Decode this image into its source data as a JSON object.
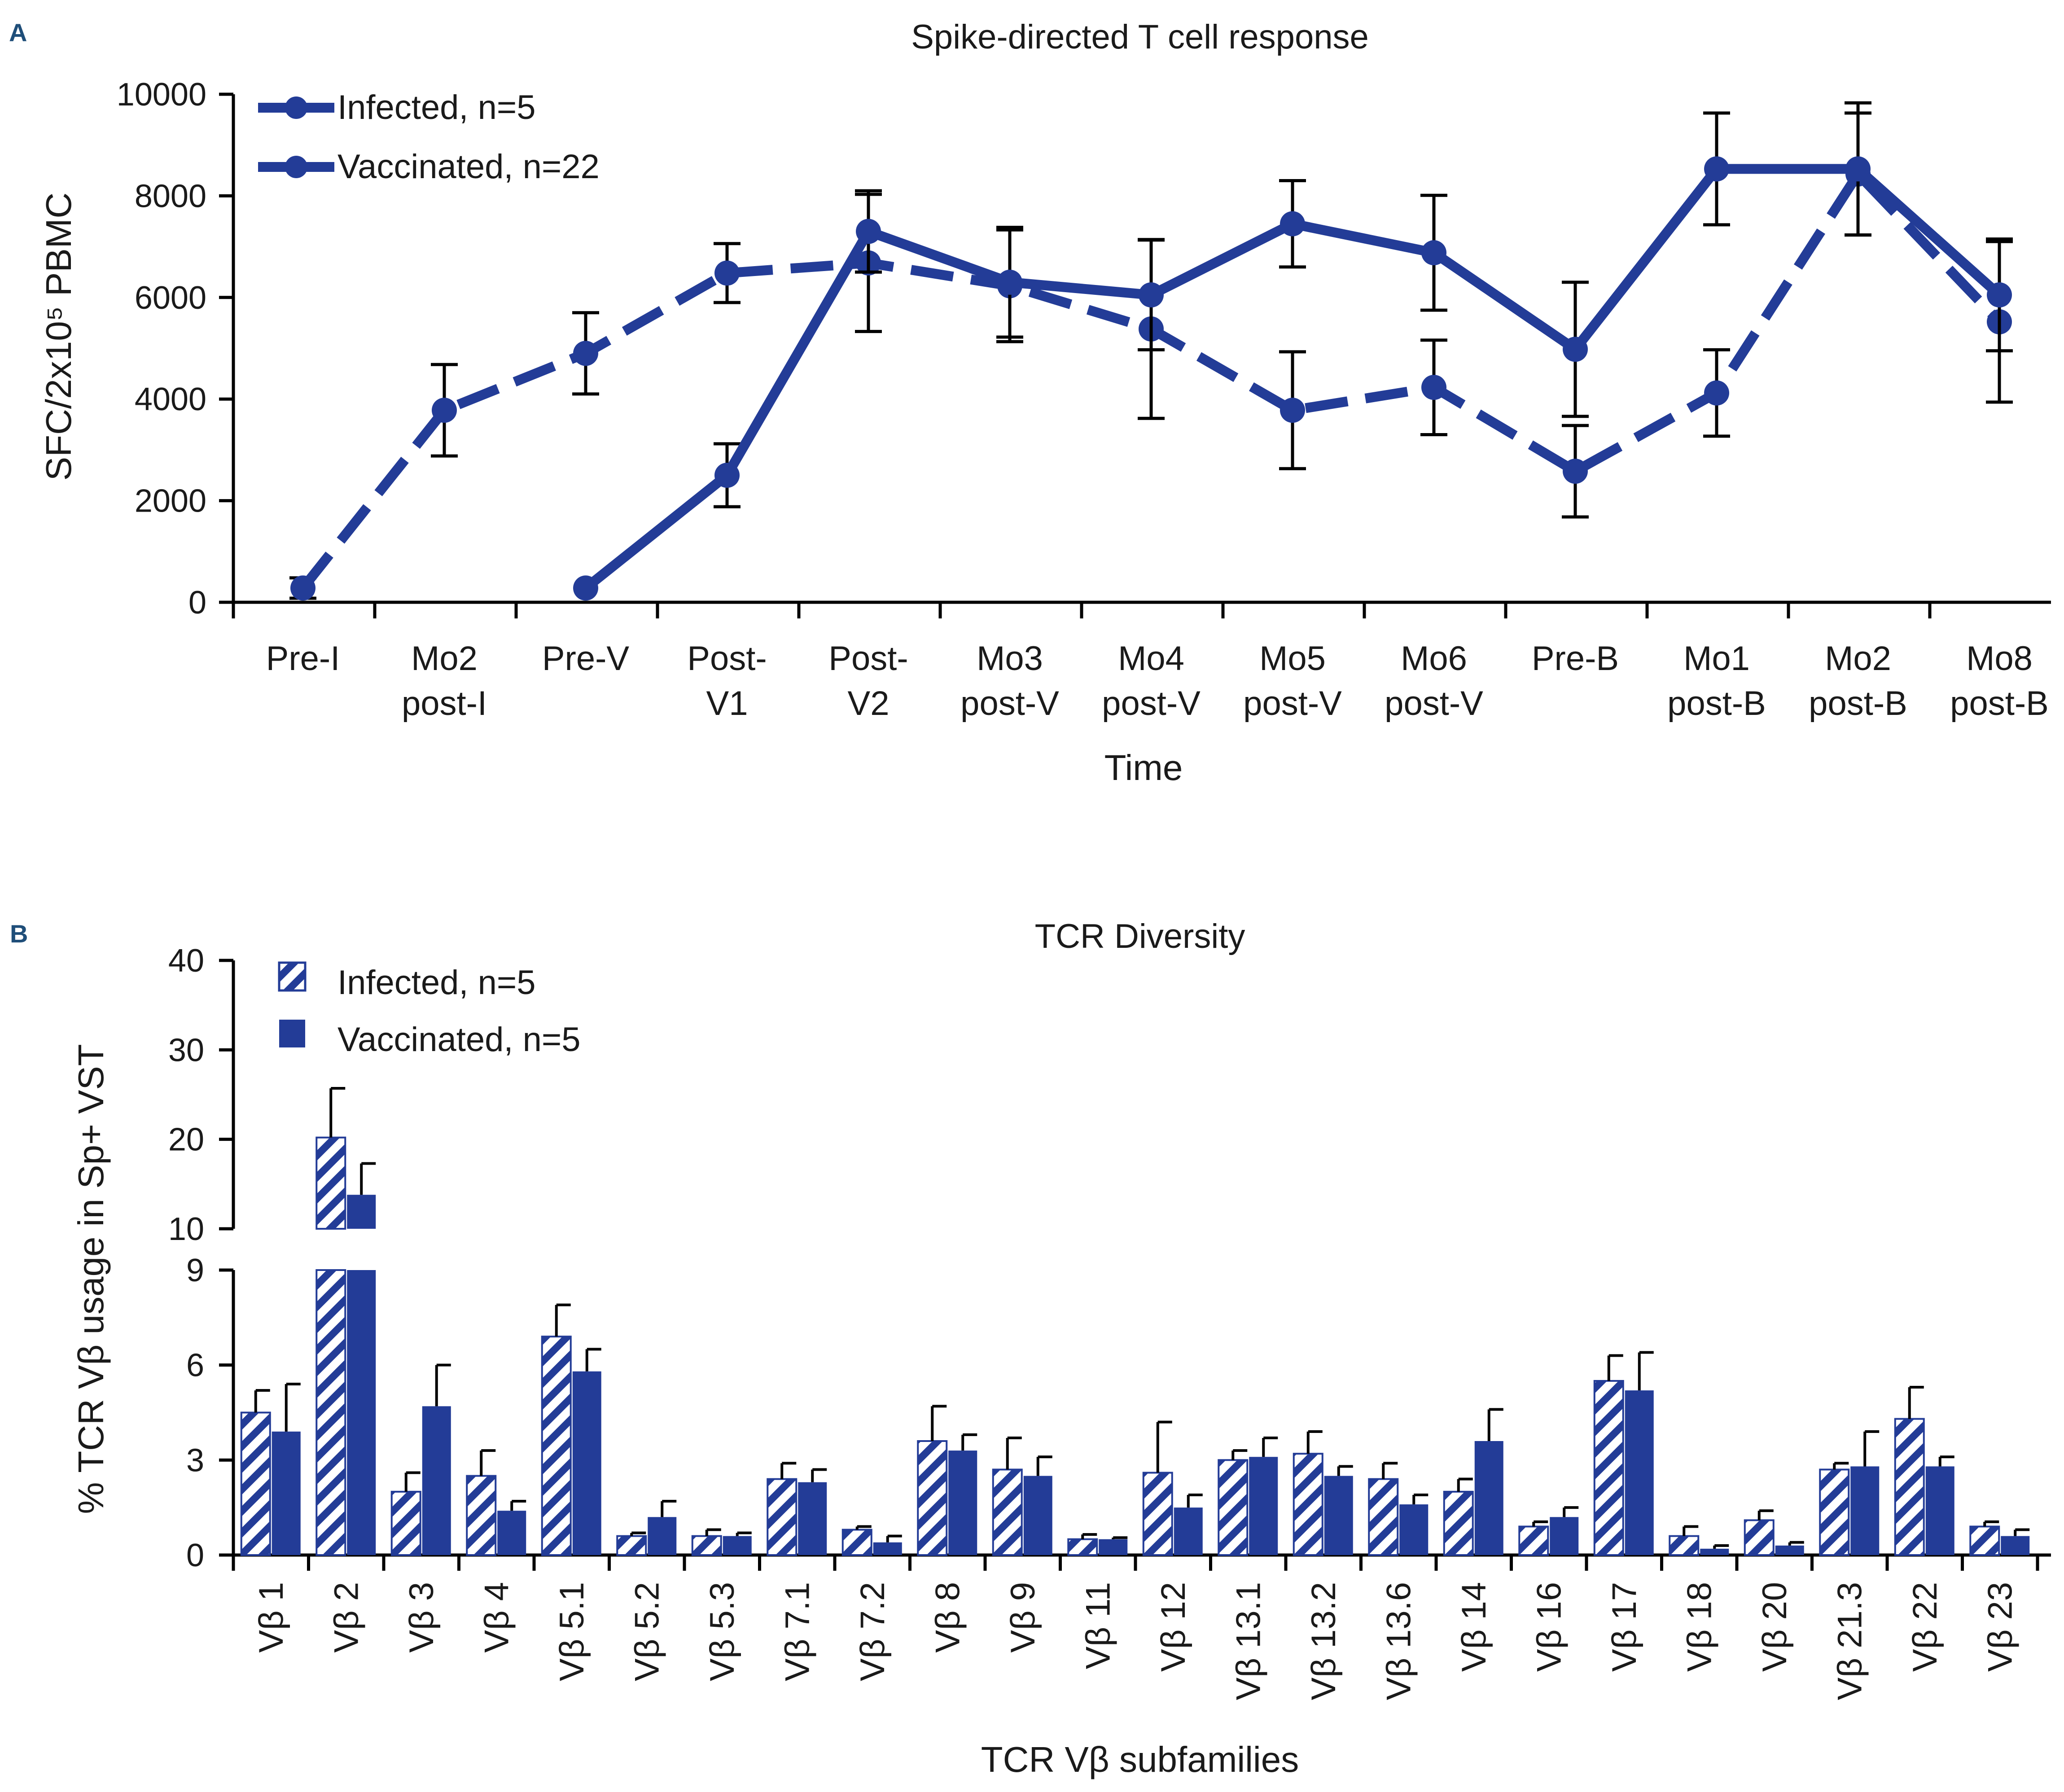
{
  "colors": {
    "series": "#233c97",
    "axis": "#000000",
    "panel_letter": "#1f4e79",
    "hatch_bg": "#ffffff"
  },
  "chart_data": [
    {
      "panel": "A",
      "type": "line",
      "title": "Spike-directed T cell response",
      "xlabel": "Time",
      "ylabel": "SFC/2x10⁵  PBMC",
      "ylim": [
        0,
        10000
      ],
      "yticks": [
        0,
        2000,
        4000,
        6000,
        8000,
        10000
      ],
      "categories": [
        [
          "Pre-I"
        ],
        [
          "Mo2",
          "post-I"
        ],
        [
          "Pre-V"
        ],
        [
          "Post-",
          "V1"
        ],
        [
          "Post-",
          "V2"
        ],
        [
          "Mo3",
          "post-V"
        ],
        [
          "Mo4",
          "post-V"
        ],
        [
          "Mo5",
          "post-V"
        ],
        [
          "Mo6",
          "post-V"
        ],
        [
          "Pre-B"
        ],
        [
          "Mo1",
          "post-B"
        ],
        [
          "Mo2",
          "post-B"
        ],
        [
          "Mo8",
          "post-B"
        ]
      ],
      "series": [
        {
          "name": "Infected, n=5",
          "style": "dashed",
          "values": [
            280,
            3780,
            4900,
            6480,
            6680,
            6230,
            5380,
            3780,
            4230,
            2580,
            4120,
            8430,
            5520
          ],
          "errors": [
            200,
            900,
            800,
            580,
            1350,
            1100,
            1760,
            1150,
            930,
            900,
            850,
            1200,
            1580
          ]
        },
        {
          "name": "Vaccinated, n=22",
          "style": "solid",
          "values": [
            null,
            null,
            280,
            2500,
            7300,
            6300,
            6050,
            7450,
            6880,
            4980,
            8530,
            8530,
            6050
          ],
          "errors": [
            null,
            null,
            0,
            620,
            800,
            1080,
            1080,
            850,
            1130,
            1320,
            1100,
            1300,
            1100
          ]
        }
      ]
    },
    {
      "panel": "B",
      "type": "bar",
      "title": "TCR Diversity",
      "xlabel": "TCR Vβ subfamilies",
      "ylabel": "% TCR Vβ usage in Sp+ VST",
      "axis_break": {
        "lower_range": [
          0,
          9
        ],
        "upper_range": [
          10,
          40
        ]
      },
      "lower_yticks": [
        0,
        3,
        6,
        9
      ],
      "upper_yticks": [
        10,
        20,
        30,
        40
      ],
      "categories": [
        "Vβ 1",
        "Vβ 2",
        "Vβ 3",
        "Vβ 4",
        "Vβ 5.1",
        "Vβ 5.2",
        "Vβ 5.3",
        "Vβ 7.1",
        "Vβ 7.2",
        "Vβ 8",
        "Vβ 9",
        "Vβ 11",
        "Vβ 12",
        "Vβ 13.1",
        "Vβ 13.2",
        "Vβ 13.6",
        "Vβ 14",
        "Vβ 16",
        "Vβ 17",
        "Vβ 18",
        "Vβ 20",
        "Vβ 21.3",
        "Vβ 22",
        "Vβ 23"
      ],
      "series": [
        {
          "name": "Infected, n=5",
          "pattern": "hatched",
          "values": [
            4.5,
            20.2,
            2.0,
            2.5,
            6.9,
            0.6,
            0.6,
            2.4,
            0.8,
            3.6,
            2.7,
            0.5,
            2.6,
            3.0,
            3.2,
            2.4,
            2.0,
            0.9,
            5.5,
            0.6,
            1.1,
            2.7,
            4.3,
            0.9
          ],
          "errors": [
            0.7,
            5.5,
            0.6,
            0.8,
            1.0,
            0.1,
            0.2,
            0.5,
            0.1,
            1.1,
            1.0,
            0.15,
            1.6,
            0.3,
            0.7,
            0.5,
            0.4,
            0.15,
            0.8,
            0.3,
            0.3,
            0.2,
            1.0,
            0.15
          ]
        },
        {
          "name": "Vaccinated, n=5",
          "pattern": "solid",
          "values": [
            3.9,
            13.8,
            4.7,
            1.4,
            5.8,
            1.2,
            0.6,
            2.3,
            0.4,
            3.3,
            2.5,
            0.5,
            1.5,
            3.1,
            2.5,
            1.6,
            3.6,
            1.2,
            5.2,
            0.2,
            0.3,
            2.8,
            2.8,
            0.6
          ],
          "errors": [
            1.5,
            3.5,
            1.3,
            0.3,
            0.7,
            0.5,
            0.1,
            0.4,
            0.2,
            0.5,
            0.6,
            0.05,
            0.4,
            0.6,
            0.3,
            0.3,
            1.0,
            0.3,
            1.2,
            0.1,
            0.1,
            1.1,
            0.3,
            0.2
          ]
        }
      ]
    }
  ]
}
